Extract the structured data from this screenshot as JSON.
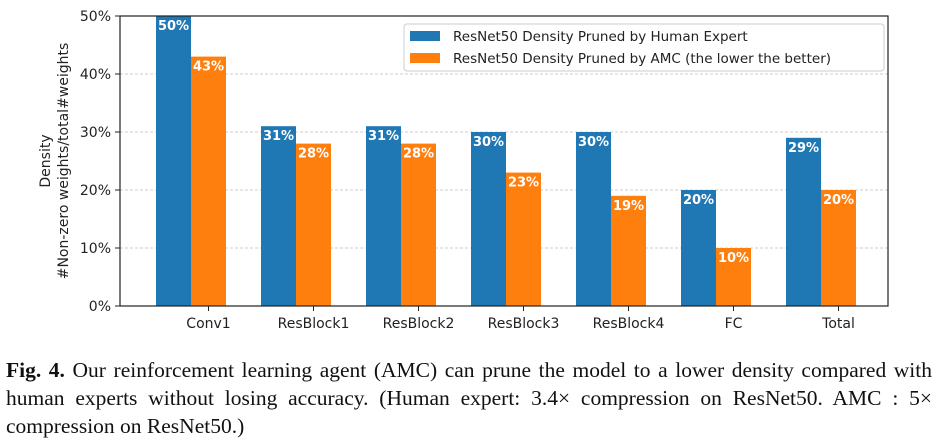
{
  "chart_data": {
    "type": "bar",
    "categories": [
      "Conv1",
      "ResBlock1",
      "ResBlock2",
      "ResBlock3",
      "ResBlock4",
      "FC",
      "Total"
    ],
    "series": [
      {
        "name": "ResNet50 Density Pruned by Human Expert",
        "values": [
          50,
          31,
          31,
          30,
          30,
          20,
          29
        ],
        "labels": [
          "50%",
          "31%",
          "31%",
          "30%",
          "30%",
          "20%",
          "29%"
        ],
        "color": "#1f77b4"
      },
      {
        "name": "ResNet50 Density Pruned by AMC (the lower the better)",
        "values": [
          43,
          28,
          28,
          23,
          19,
          10,
          20
        ],
        "labels": [
          "43%",
          "28%",
          "28%",
          "23%",
          "19%",
          "10%",
          "20%"
        ],
        "color": "#ff7f0e"
      }
    ],
    "ylabel_line1": "Density",
    "ylabel_line2": "#Non-zero weights/total#weights",
    "yticks": [
      "0%",
      "10%",
      "20%",
      "30%",
      "40%",
      "50%"
    ],
    "ylim": [
      0,
      50
    ],
    "grid": "horizontal dashed",
    "legend": "top-right"
  },
  "caption": {
    "label": "Fig. 4.",
    "text": "Our reinforcement learning agent (AMC) can prune the model to a lower density compared with human experts without losing accuracy. (Human expert: 3.4× compression on ResNet50. AMC : 5× compression on ResNet50.)"
  }
}
